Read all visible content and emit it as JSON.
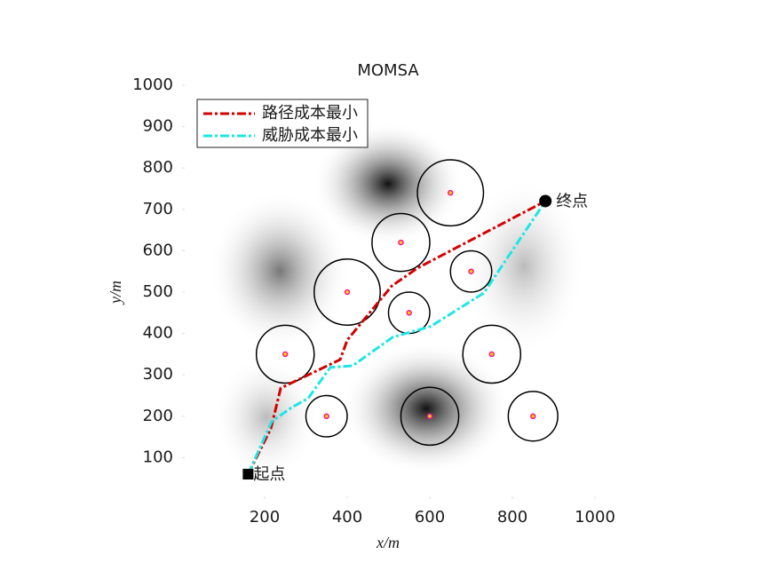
{
  "chart_data": {
    "type": "line",
    "title": "MOMSA",
    "x_label": "x/m",
    "y_label": "y/m",
    "xlim": [
      0,
      1000
    ],
    "ylim": [
      0,
      1000
    ],
    "xticks": [
      200,
      400,
      600,
      800,
      1000
    ],
    "yticks": [
      100,
      200,
      300,
      400,
      500,
      600,
      700,
      800,
      900,
      1000
    ],
    "legend": "upper left",
    "series": [
      {
        "name": "路径成本最小",
        "color": "#d40000",
        "x": [
          160,
          215,
          239,
          383,
          400,
          508,
          570,
          880
        ],
        "values": [
          60,
          170,
          268,
          337,
          384,
          515,
          558,
          720
        ]
      },
      {
        "name": "威胁成本最小",
        "color": "#1ee6e6",
        "x": [
          160,
          217,
          265,
          305,
          359,
          413,
          510,
          602,
          731,
          880
        ],
        "values": [
          60,
          187,
          221,
          243,
          318,
          322,
          391,
          417,
          498,
          720
        ]
      }
    ],
    "threats": {
      "x": [
        650,
        530,
        700,
        400,
        550,
        250,
        750,
        350,
        600,
        850
      ],
      "y": [
        740,
        620,
        550,
        500,
        450,
        350,
        350,
        200,
        200,
        200
      ],
      "r": [
        80,
        70,
        50,
        80,
        50,
        70,
        70,
        50,
        70,
        60
      ]
    },
    "annotations": [
      {
        "label": "起点",
        "x": 160,
        "y": 60
      },
      {
        "label": "终点",
        "x": 880,
        "y": 720
      }
    ]
  }
}
